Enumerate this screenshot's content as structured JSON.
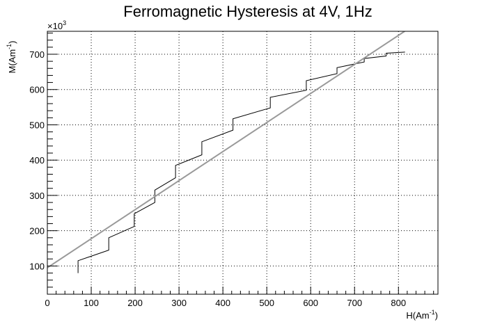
{
  "chart_data": {
    "type": "line",
    "title": "Ferromagnetic Hysteresis at 4V, 1Hz",
    "xlabel": "H(Am",
    "xlabel_sup": "-1",
    "xlabel_end": ")",
    "ylabel": "M(Am",
    "ylabel_sup": "-1",
    "ylabel_end": ")",
    "y_multiplier_base": "×10",
    "y_multiplier_exp": "3",
    "xlim": [
      0,
      890
    ],
    "ylim": [
      20,
      765
    ],
    "x_ticks": [
      0,
      100,
      200,
      300,
      400,
      500,
      600,
      700,
      800
    ],
    "y_ticks": [
      100,
      200,
      300,
      400,
      500,
      600,
      700
    ],
    "grid": true,
    "series": [
      {
        "color": "#000000",
        "style": "step",
        "points": [
          [
            70,
            80
          ],
          [
            70,
            115
          ],
          [
            140,
            145
          ],
          [
            140,
            180
          ],
          [
            198,
            212
          ],
          [
            198,
            248
          ],
          [
            245,
            280
          ],
          [
            245,
            315
          ],
          [
            292,
            350
          ],
          [
            292,
            385
          ],
          [
            352,
            415
          ],
          [
            352,
            452
          ],
          [
            423,
            485
          ],
          [
            423,
            517
          ],
          [
            508,
            548
          ],
          [
            508,
            578
          ],
          [
            590,
            598
          ],
          [
            590,
            625
          ],
          [
            660,
            645
          ],
          [
            660,
            662
          ],
          [
            722,
            678
          ],
          [
            722,
            688
          ],
          [
            772,
            695
          ],
          [
            772,
            703
          ],
          [
            815,
            706
          ]
        ]
      },
      {
        "color": "#999999",
        "style": "line",
        "points": [
          [
            0,
            95
          ],
          [
            820,
            770
          ]
        ]
      }
    ]
  }
}
